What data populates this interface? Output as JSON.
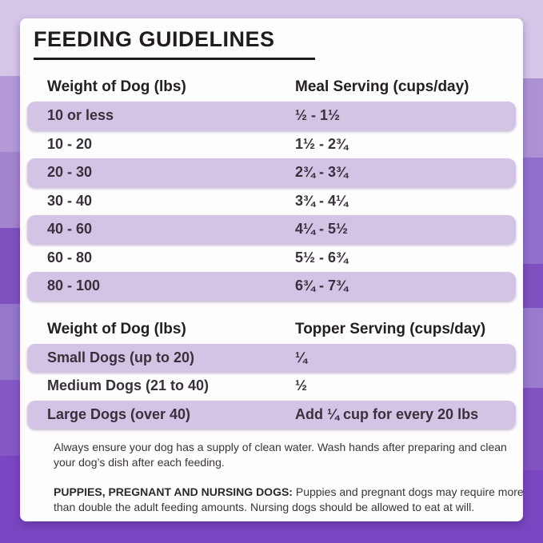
{
  "title": "FEEDING GUIDELINES",
  "meal_table": {
    "col1_header": "Weight of Dog (lbs)",
    "col2_header": "Meal Serving (cups/day)",
    "rows": [
      {
        "weight": "10 or less",
        "serving": "½ - 1½"
      },
      {
        "weight": "10 - 20",
        "serving": "1½ - 2¾"
      },
      {
        "weight": "20 - 30",
        "serving": "2¾ - 3¾"
      },
      {
        "weight": "30 - 40",
        "serving": "3¾ - 4¼"
      },
      {
        "weight": "40 - 60",
        "serving": "4¼ - 5½"
      },
      {
        "weight": "60 - 80",
        "serving": "5½ - 6¾"
      },
      {
        "weight": "80 - 100",
        "serving": "6¾ - 7¾"
      }
    ]
  },
  "topper_table": {
    "col1_header": "Weight of Dog (lbs)",
    "col2_header": "Topper Serving (cups/day)",
    "rows": [
      {
        "weight": "Small Dogs (up to 20)",
        "serving": "¼"
      },
      {
        "weight": "Medium Dogs (21 to 40)",
        "serving": "½"
      },
      {
        "weight": "Large Dogs (over 40)",
        "serving": "Add ¼ cup for every 20 lbs"
      }
    ]
  },
  "notes": {
    "water": "Always ensure your dog has a supply of clean water. Wash hands after preparing and clean your dog’s dish after each feeding.",
    "puppies_label": "PUPPIES, PREGNANT AND NURSING DOGS:",
    "puppies_text": " Puppies and pregnant dogs may require more than double the adult feeding amounts. Nursing dogs should be allowed to eat at will."
  },
  "colors": {
    "highlight_row": "#d3c4e6",
    "card": "#fefdfe",
    "text_dark": "#242021",
    "bg_top": "#d5c6e8",
    "bg_bottom": "#7a46c2"
  },
  "chart_data": {
    "type": "table",
    "title": "FEEDING GUIDELINES",
    "tables": [
      {
        "columns": [
          "Weight of Dog (lbs)",
          "Meal Serving (cups/day)"
        ],
        "rows": [
          [
            "10 or less",
            "½ - 1½"
          ],
          [
            "10 - 20",
            "1½ - 2¾"
          ],
          [
            "20 - 30",
            "2¾ - 3¾"
          ],
          [
            "30 - 40",
            "3¾ - 4¼"
          ],
          [
            "40 - 60",
            "4¼ - 5½"
          ],
          [
            "60 - 80",
            "5½ - 6¾"
          ],
          [
            "80 - 100",
            "6¾ - 7¾"
          ]
        ]
      },
      {
        "columns": [
          "Weight of Dog (lbs)",
          "Topper Serving (cups/day)"
        ],
        "rows": [
          [
            "Small Dogs (up to 20)",
            "¼"
          ],
          [
            "Medium Dogs (21 to 40)",
            "½"
          ],
          [
            "Large Dogs (over 40)",
            "Add ¼ cup for every 20 lbs"
          ]
        ]
      }
    ]
  }
}
